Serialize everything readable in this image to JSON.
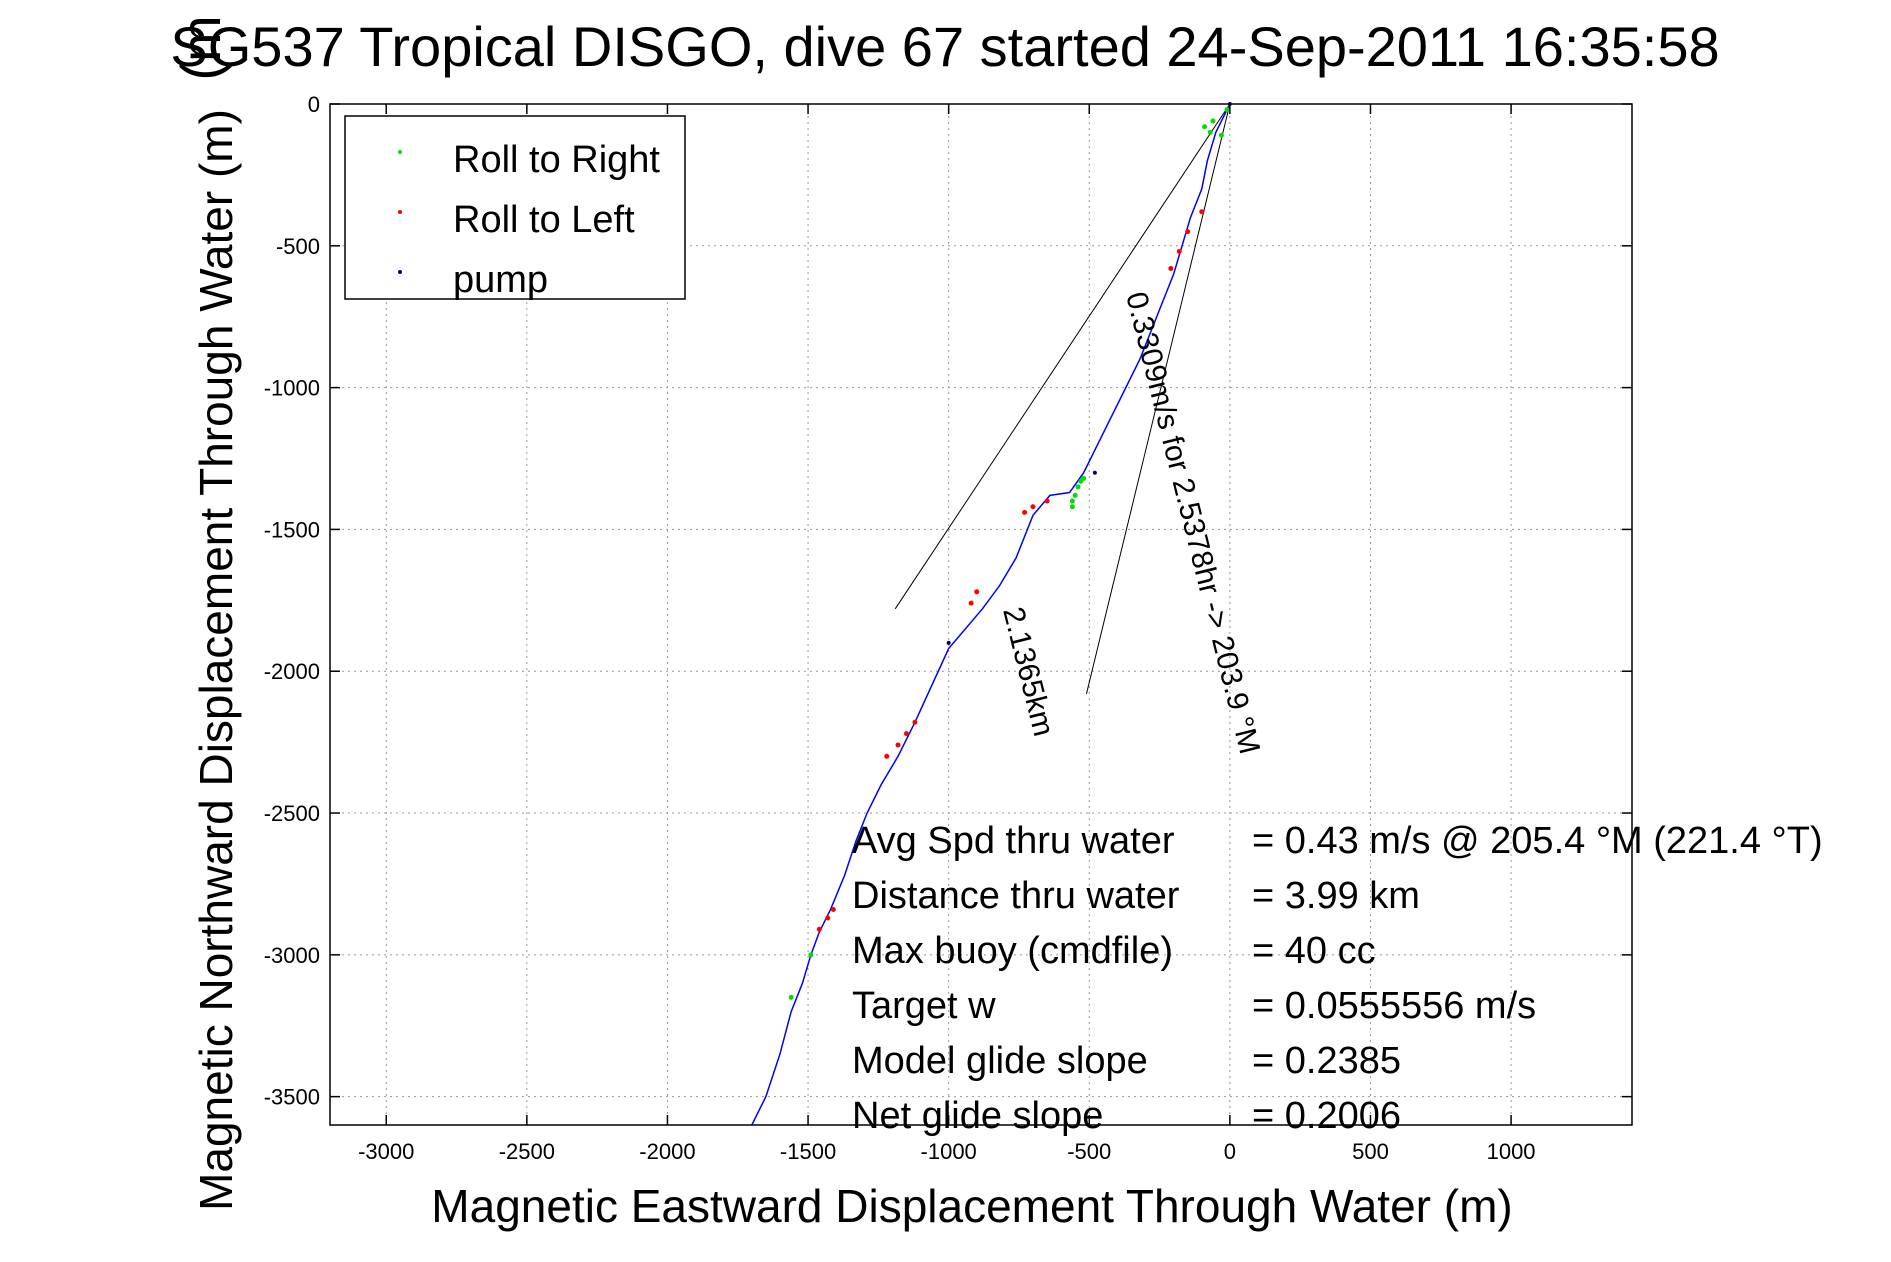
{
  "chart_data": {
    "type": "line",
    "title": "SG537 Tropical DISGO, dive 67 started 24-Sep-2011 16:35:58",
    "overlay_title_fragment": "(m",
    "xlabel": "Magnetic Eastward Displacement Through Water (m)",
    "ylabel": "Magnetic Northward Displacement Through Water (m)",
    "xlim": [
      -3200,
      1430
    ],
    "ylim": [
      -3600,
      0
    ],
    "grid": true,
    "x_ticks": [
      -3000,
      -2500,
      -2000,
      -1500,
      -1000,
      -500,
      0,
      500,
      1000
    ],
    "y_ticks": [
      0,
      -500,
      -1000,
      -1500,
      -2000,
      -2500,
      -3000,
      -3500
    ],
    "legend": {
      "placement": "top-left",
      "entries": [
        {
          "label": "Roll to Right",
          "color": "#00dd00"
        },
        {
          "label": "Roll to Left",
          "color": "#ff0000"
        },
        {
          "label": "pump",
          "color": "#000066"
        }
      ]
    },
    "track": {
      "name": "track",
      "color": "#0000ff",
      "x": [
        0,
        -30,
        -50,
        -80,
        -100,
        -140,
        -170,
        -200,
        -240,
        -280,
        -320,
        -370,
        -420,
        -470,
        -520,
        -570,
        -640,
        -700,
        -760,
        -820,
        -880,
        -940,
        -1000,
        -1060,
        -1120,
        -1180,
        -1240,
        -1290,
        -1330,
        -1370,
        -1420,
        -1460,
        -1490,
        -1520,
        -1560,
        -1600,
        -1650,
        -1700
      ],
      "y": [
        0,
        -60,
        -100,
        -200,
        -300,
        -400,
        -500,
        -600,
        -700,
        -800,
        -900,
        -1000,
        -1100,
        -1200,
        -1300,
        -1370,
        -1380,
        -1450,
        -1600,
        -1700,
        -1780,
        -1850,
        -1920,
        -2050,
        -2180,
        -2300,
        -2400,
        -2500,
        -2600,
        -2720,
        -2840,
        -2920,
        -3000,
        -3100,
        -3200,
        -3350,
        -3500,
        -3600
      ]
    },
    "roll_right": {
      "color": "#00dd00",
      "x": [
        -10,
        -60,
        -90,
        -70,
        -30,
        -520,
        -540,
        -560,
        -560,
        -550,
        -530,
        -1490,
        -1560
      ],
      "y": [
        -20,
        -60,
        -80,
        -100,
        -110,
        -1320,
        -1350,
        -1400,
        -1420,
        -1380,
        -1330,
        -3000,
        -3150
      ]
    },
    "roll_left": {
      "color": "#ff0000",
      "x": [
        -100,
        -150,
        -180,
        -210,
        -650,
        -700,
        -730,
        -900,
        -920,
        -1120,
        -1150,
        -1180,
        -1220,
        -1410,
        -1430,
        -1460
      ],
      "y": [
        -380,
        -450,
        -520,
        -580,
        -1400,
        -1420,
        -1440,
        -1720,
        -1760,
        -2180,
        -2220,
        -2260,
        -2300,
        -2840,
        -2870,
        -2910
      ]
    },
    "pump": {
      "color": "#000066",
      "x": [
        0,
        -480,
        -1000
      ],
      "y": [
        0,
        -1300,
        -1900
      ]
    },
    "guide_lines": [
      {
        "x": [
          0,
          -1190
        ],
        "y": [
          0,
          -1780
        ]
      },
      {
        "x": [
          0,
          -510
        ],
        "y": [
          0,
          -2080
        ]
      }
    ],
    "annotations": [
      {
        "text": "0.3309m/s for 2.5378hr -> 203.9 °M"
      },
      {
        "text": "2.1365km"
      }
    ],
    "stats": [
      {
        "label": "Avg Spd thru water",
        "value": "=  0.43 m/s @ 205.4 °M (221.4 °T)"
      },
      {
        "label": "Distance thru water",
        "value": "=  3.99 km"
      },
      {
        "label": "Max buoy (cmdfile)",
        "value": "= 40 cc"
      },
      {
        "label": "Target w",
        "value": "= 0.0555556 m/s"
      },
      {
        "label": "Model glide slope",
        "value": "= 0.2385"
      },
      {
        "label": "Net glide slope",
        "value": "= 0.2006"
      }
    ]
  }
}
